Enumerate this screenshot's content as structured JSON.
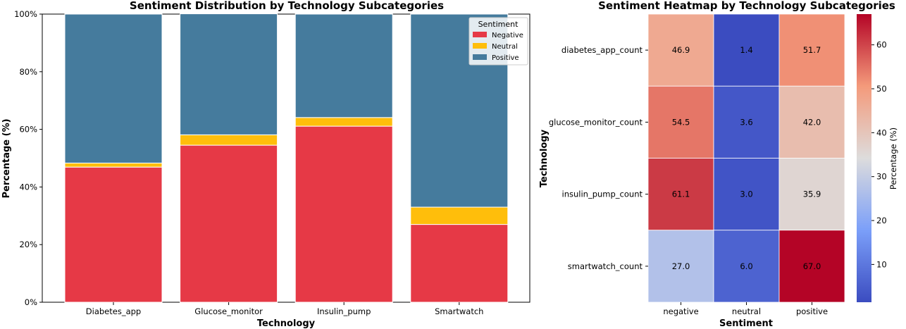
{
  "chart_data": [
    {
      "type": "bar",
      "stacked": true,
      "title": "Sentiment Distribution by Technology Subcategories",
      "xlabel": "Technology",
      "ylabel": "Percentage (%)",
      "ylim": [
        0,
        100
      ],
      "yticks": [
        "0%",
        "20%",
        "40%",
        "60%",
        "80%",
        "100%"
      ],
      "categories": [
        "Diabetes_app",
        "Glucose_monitor",
        "Insulin_pump",
        "Smartwatch"
      ],
      "series": [
        {
          "name": "Negative",
          "color": "#e63946",
          "values": [
            46.9,
            54.5,
            61.1,
            27.0
          ]
        },
        {
          "name": "Neutral",
          "color": "#ffbe0b",
          "values": [
            1.4,
            3.6,
            3.0,
            6.0
          ]
        },
        {
          "name": "Positive",
          "color": "#457b9d",
          "values": [
            51.7,
            42.0,
            35.9,
            67.0
          ]
        }
      ],
      "legend": {
        "title": "Sentiment",
        "placement": "top-right"
      },
      "grid": false
    },
    {
      "type": "heatmap",
      "title": "Sentiment Heatmap by Technology Subcategories",
      "xlabel": "Sentiment",
      "ylabel": "Technology",
      "x_categories": [
        "negative",
        "neutral",
        "positive"
      ],
      "y_categories": [
        "diabetes_app_count",
        "glucose_monitor_count",
        "insulin_pump_count",
        "smartwatch_count"
      ],
      "values": [
        [
          46.9,
          1.4,
          51.7
        ],
        [
          54.5,
          3.6,
          42.0
        ],
        [
          61.1,
          3.0,
          35.9
        ],
        [
          27.0,
          6.0,
          67.0
        ]
      ],
      "colorbar": {
        "label": "Percentage (%)",
        "ticks": [
          10,
          20,
          30,
          40,
          50,
          60
        ],
        "range": [
          1.4,
          67.0
        ],
        "colormap": "coolwarm"
      }
    }
  ]
}
